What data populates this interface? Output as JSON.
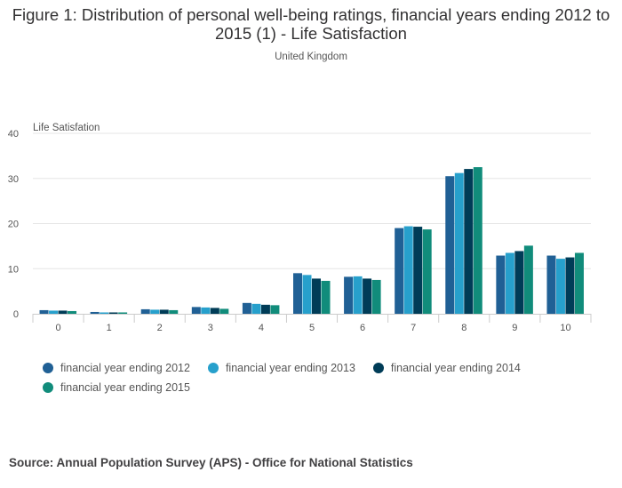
{
  "title": "Figure 1: Distribution of personal well-being ratings, financial years ending 2012 to 2015 (1) - Life Satisfaction",
  "subtitle": "United Kingdom",
  "source": "Source: Annual Population Survey (APS) - Office for National Statistics",
  "chart_data": {
    "type": "bar",
    "title": "Figure 1: Distribution of personal well-being ratings, financial years ending 2012 to 2015 (1) - Life Satisfaction",
    "subtitle": "United Kingdom",
    "ylabel": "Life Satisfation",
    "xlabel": "",
    "ylim": [
      0,
      40
    ],
    "yticks": [
      0,
      10,
      20,
      30,
      40
    ],
    "grid": true,
    "legend_position": "bottom",
    "categories": [
      "0",
      "1",
      "2",
      "3",
      "4",
      "5",
      "6",
      "7",
      "8",
      "9",
      "10"
    ],
    "series": [
      {
        "name": "financial year ending 2012",
        "color": "#206095",
        "values": [
          0.8,
          0.4,
          1.0,
          1.5,
          2.4,
          9.0,
          8.2,
          19.0,
          30.5,
          12.9,
          12.9
        ]
      },
      {
        "name": "financial year ending 2013",
        "color": "#27A0CC",
        "values": [
          0.7,
          0.3,
          0.9,
          1.4,
          2.2,
          8.6,
          8.3,
          19.4,
          31.2,
          13.5,
          12.2
        ]
      },
      {
        "name": "financial year ending 2014",
        "color": "#003C57",
        "values": [
          0.7,
          0.3,
          0.9,
          1.3,
          2.0,
          7.8,
          7.8,
          19.3,
          32.1,
          13.9,
          12.5
        ]
      },
      {
        "name": "financial year ending 2015",
        "color": "#118C7B",
        "values": [
          0.6,
          0.3,
          0.8,
          1.1,
          1.9,
          7.3,
          7.5,
          18.7,
          32.5,
          15.1,
          13.5
        ]
      }
    ]
  }
}
